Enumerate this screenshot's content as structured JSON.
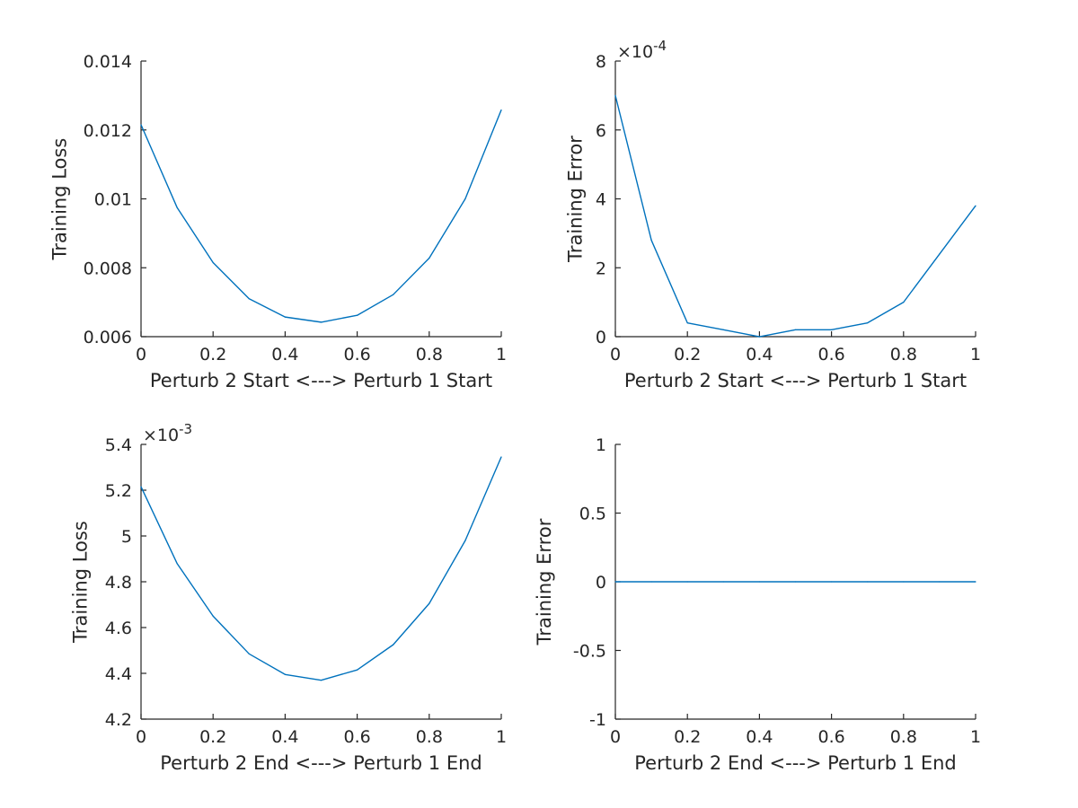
{
  "series_color": "#0072BD",
  "chart_data": [
    {
      "type": "line",
      "xlabel": "Perturb 2 Start <---> Perturb 1 Start",
      "ylabel": "Training Loss",
      "exponent": "",
      "xlim": [
        0,
        1
      ],
      "ylim": [
        0.006,
        0.014
      ],
      "xticks": [
        0,
        0.2,
        0.4,
        0.6,
        0.8,
        1
      ],
      "xtick_labels": [
        "0",
        "0.2",
        "0.4",
        "0.6",
        "0.8",
        "1"
      ],
      "yticks": [
        0.006,
        0.008,
        0.01,
        0.012,
        0.014
      ],
      "ytick_labels": [
        "0.006",
        "0.008",
        "0.01",
        "0.012",
        "0.014"
      ],
      "grid": false,
      "series": [
        {
          "x": [
            0,
            0.1,
            0.2,
            0.3,
            0.4,
            0.5,
            0.6,
            0.7,
            0.8,
            0.9,
            1
          ],
          "y": [
            0.01215,
            0.00975,
            0.00815,
            0.0071,
            0.00657,
            0.00642,
            0.00662,
            0.00722,
            0.00828,
            0.01,
            0.01258
          ]
        }
      ]
    },
    {
      "type": "line",
      "xlabel": "Perturb 2 Start <---> Perturb 1 Start",
      "ylabel": "Training Error",
      "exponent": "×10-4",
      "exponent_base": "×10",
      "exponent_power": "-4",
      "xlim": [
        0,
        1
      ],
      "ylim": [
        0,
        0.0008
      ],
      "xticks": [
        0,
        0.2,
        0.4,
        0.6,
        0.8,
        1
      ],
      "xtick_labels": [
        "0",
        "0.2",
        "0.4",
        "0.6",
        "0.8",
        "1"
      ],
      "yticks": [
        0,
        0.0002,
        0.0004,
        0.0006,
        0.0008
      ],
      "ytick_labels": [
        "0",
        "2",
        "4",
        "6",
        "8"
      ],
      "grid": false,
      "series": [
        {
          "x": [
            0,
            0.1,
            0.2,
            0.3,
            0.4,
            0.5,
            0.6,
            0.7,
            0.8,
            0.9,
            1
          ],
          "y": [
            0.0007,
            0.00028,
            4e-05,
            2e-05,
            0.0,
            2e-05,
            2e-05,
            4e-05,
            0.0001,
            0.00024,
            0.00038
          ]
        }
      ]
    },
    {
      "type": "line",
      "xlabel": "Perturb 2 End <---> Perturb 1 End",
      "ylabel": "Training Loss",
      "exponent": "×10-3",
      "exponent_base": "×10",
      "exponent_power": "-3",
      "xlim": [
        0,
        1
      ],
      "ylim": [
        0.0042,
        0.0054
      ],
      "xticks": [
        0,
        0.2,
        0.4,
        0.6,
        0.8,
        1
      ],
      "xtick_labels": [
        "0",
        "0.2",
        "0.4",
        "0.6",
        "0.8",
        "1"
      ],
      "yticks": [
        0.0042,
        0.0044,
        0.0046,
        0.0048,
        0.005,
        0.0052,
        0.0054
      ],
      "ytick_labels": [
        "4.2",
        "4.4",
        "4.6",
        "4.8",
        "5",
        "5.2",
        "5.4"
      ],
      "grid": false,
      "series": [
        {
          "x": [
            0,
            0.1,
            0.2,
            0.3,
            0.4,
            0.5,
            0.6,
            0.7,
            0.8,
            0.9,
            1
          ],
          "y": [
            0.005215,
            0.00488,
            0.00465,
            0.004485,
            0.004395,
            0.00437,
            0.004415,
            0.004525,
            0.004705,
            0.00498,
            0.005345
          ]
        }
      ]
    },
    {
      "type": "line",
      "xlabel": "Perturb 2 End <---> Perturb 1 End",
      "ylabel": "Training Error",
      "exponent": "",
      "xlim": [
        0,
        1
      ],
      "ylim": [
        -1,
        1
      ],
      "xticks": [
        0,
        0.2,
        0.4,
        0.6,
        0.8,
        1
      ],
      "xtick_labels": [
        "0",
        "0.2",
        "0.4",
        "0.6",
        "0.8",
        "1"
      ],
      "yticks": [
        -1,
        -0.5,
        0,
        0.5,
        1
      ],
      "ytick_labels": [
        "-1",
        "-0.5",
        "0",
        "0.5",
        "1"
      ],
      "grid": false,
      "series": [
        {
          "x": [
            0,
            0.1,
            0.2,
            0.3,
            0.4,
            0.5,
            0.6,
            0.7,
            0.8,
            0.9,
            1
          ],
          "y": [
            0,
            0,
            0,
            0,
            0,
            0,
            0,
            0,
            0,
            0,
            0
          ]
        }
      ]
    }
  ]
}
